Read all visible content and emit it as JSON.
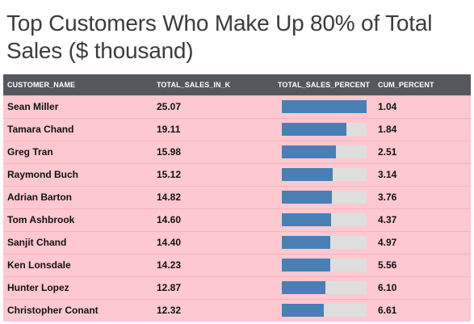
{
  "title": "Top Customers Who Make Up 80% of Total Sales ($ thousand)",
  "colors": {
    "header_bg": "#54585e",
    "row_bg": "#fec8d0",
    "bar_fill": "#4a7fb5",
    "bar_track": "#dedede"
  },
  "chart_data": {
    "type": "table",
    "columns": [
      "CUSTOMER_NAME",
      "TOTAL_SALES_IN_K",
      "TOTAL_SALES_PERCENT",
      "CUM_PERCENT"
    ],
    "bar_scale_max": 25.07,
    "rows": [
      {
        "customer_name": "Sean Miller",
        "total_sales_in_k": "25.07",
        "cum_percent": "1.04",
        "sales_value": 25.07
      },
      {
        "customer_name": "Tamara Chand",
        "total_sales_in_k": "19.11",
        "cum_percent": "1.84",
        "sales_value": 19.11
      },
      {
        "customer_name": "Greg Tran",
        "total_sales_in_k": "15.98",
        "cum_percent": "2.51",
        "sales_value": 15.98
      },
      {
        "customer_name": "Raymond Buch",
        "total_sales_in_k": "15.12",
        "cum_percent": "3.14",
        "sales_value": 15.12
      },
      {
        "customer_name": "Adrian Barton",
        "total_sales_in_k": "14.82",
        "cum_percent": "3.76",
        "sales_value": 14.82
      },
      {
        "customer_name": "Tom Ashbrook",
        "total_sales_in_k": "14.60",
        "cum_percent": "4.37",
        "sales_value": 14.6
      },
      {
        "customer_name": "Sanjit Chand",
        "total_sales_in_k": "14.40",
        "cum_percent": "4.97",
        "sales_value": 14.4
      },
      {
        "customer_name": "Ken Lonsdale",
        "total_sales_in_k": "14.23",
        "cum_percent": "5.56",
        "sales_value": 14.23
      },
      {
        "customer_name": "Hunter Lopez",
        "total_sales_in_k": "12.87",
        "cum_percent": "6.10",
        "sales_value": 12.87
      },
      {
        "customer_name": "Christopher Conant",
        "total_sales_in_k": "12.32",
        "cum_percent": "6.61",
        "sales_value": 12.32
      }
    ]
  }
}
